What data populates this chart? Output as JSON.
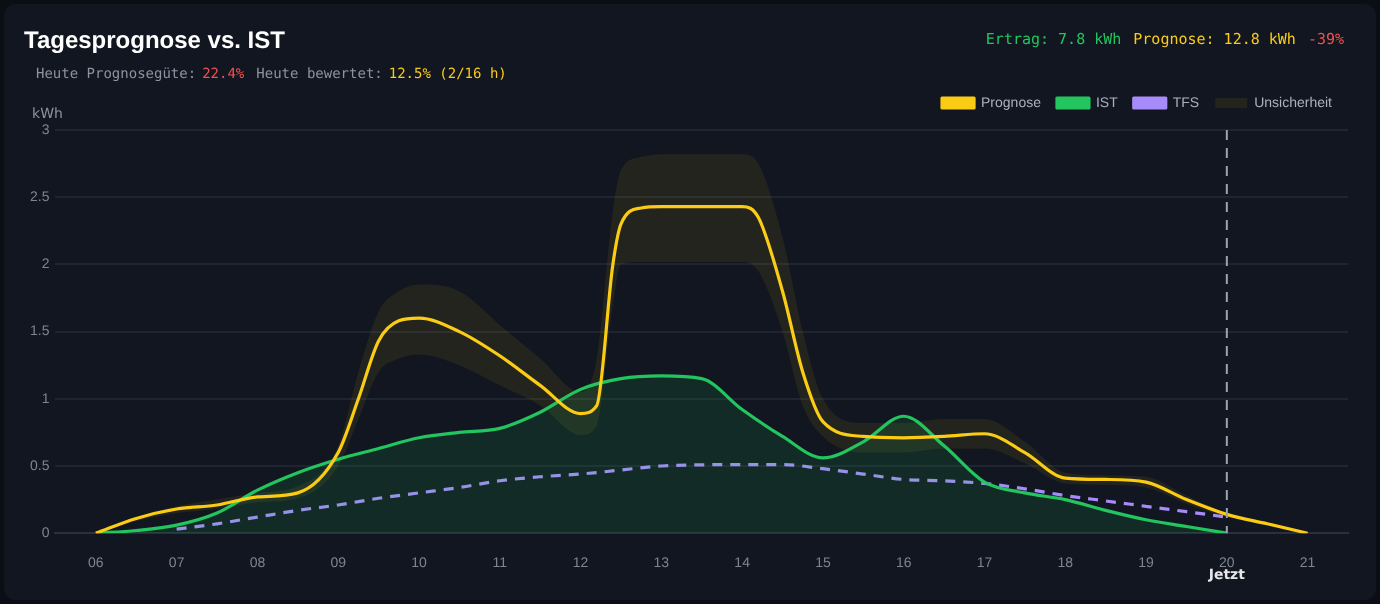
{
  "chart_data": {
    "type": "line",
    "title": "Tagesprognose vs. IST",
    "ylabel": "kWh",
    "annotations": [
      "Heute Prognosegüte:",
      "22.4%",
      "Heute bewertet:",
      "12.5% (2/16 h)",
      "Ertrag: 7.8 kWh",
      "Prognose: 12.8 kWh",
      "-39%",
      "Unsicherheit"
    ],
    "xlim": [
      5.5,
      21.5
    ],
    "xticks": [
      {
        "value": 6,
        "label": "06"
      },
      {
        "value": 7,
        "label": "07"
      },
      {
        "value": 8,
        "label": "08"
      },
      {
        "value": 9,
        "label": "09"
      },
      10,
      11,
      12,
      13,
      14,
      15,
      16,
      17,
      18,
      19,
      20,
      21
    ],
    "ylim": [
      0,
      3
    ],
    "yticks": [
      0,
      0.5,
      1,
      1.5,
      2,
      2.5,
      3
    ],
    "grid": "y",
    "legend": "top right",
    "marker": "none",
    "series": [
      {
        "name": "Prognose",
        "color": "#facc15",
        "x": [
          6,
          6.5,
          7,
          7.5,
          8,
          8.5,
          9,
          9.25,
          9.5,
          9.75,
          10,
          10.5,
          11,
          11.5,
          12,
          12.2,
          12.4,
          12.5,
          12.75,
          13,
          14,
          14.2,
          14.5,
          14.75,
          15,
          15.5,
          16,
          16.5,
          17,
          17.5,
          18,
          18.5,
          19,
          19.5,
          20,
          20.5,
          21
        ],
        "values": [
          0,
          0.11,
          0.18,
          0.21,
          0.27,
          0.3,
          0.6,
          1.0,
          1.43,
          1.58,
          1.6,
          1.5,
          1.32,
          1.1,
          0.89,
          0.95,
          2.0,
          2.3,
          2.42,
          2.43,
          2.43,
          2.35,
          1.8,
          1.2,
          0.83,
          0.72,
          0.71,
          0.72,
          0.74,
          0.6,
          0.41,
          0.4,
          0.38,
          0.25,
          0.14,
          0.07,
          0
        ],
        "lower": [
          0,
          0.09,
          0.15,
          0.18,
          0.23,
          0.26,
          0.5,
          0.85,
          1.2,
          1.3,
          1.33,
          1.25,
          1.1,
          0.95,
          0.73,
          0.8,
          1.7,
          2.0,
          2.02,
          2.02,
          2.02,
          1.95,
          1.5,
          0.95,
          0.72,
          0.6,
          0.6,
          0.63,
          0.63,
          0.52,
          0.37,
          0.36,
          0.34,
          0.22,
          0.12,
          0.06,
          0
        ],
        "upper": [
          0,
          0.12,
          0.2,
          0.25,
          0.3,
          0.35,
          0.65,
          1.2,
          1.65,
          1.8,
          1.85,
          1.8,
          1.55,
          1.3,
          1.05,
          1.3,
          2.4,
          2.7,
          2.8,
          2.82,
          2.82,
          2.75,
          2.2,
          1.5,
          1.0,
          0.82,
          0.82,
          0.85,
          0.85,
          0.68,
          0.45,
          0.43,
          0.42,
          0.28,
          0.15,
          0.08,
          0
        ]
      },
      {
        "name": "IST",
        "type": "area",
        "color": "#22c55e",
        "x": [
          6,
          6.5,
          7,
          7.5,
          8,
          8.5,
          9,
          9.5,
          10,
          10.5,
          11,
          11.5,
          12,
          12.5,
          13,
          13.5,
          14,
          14.5,
          15,
          15.5,
          16,
          16.5,
          17,
          17.5,
          18,
          18.5,
          19,
          19.5,
          20
        ],
        "values": [
          0,
          0.02,
          0.06,
          0.15,
          0.32,
          0.45,
          0.55,
          0.63,
          0.71,
          0.75,
          0.78,
          0.9,
          1.07,
          1.15,
          1.17,
          1.15,
          0.92,
          0.72,
          0.56,
          0.68,
          0.87,
          0.65,
          0.38,
          0.3,
          0.25,
          0.17,
          0.1,
          0.05,
          0
        ]
      },
      {
        "name": "TFS",
        "color": "#a78bfa",
        "line_style": "dashed",
        "x": [
          7,
          7.5,
          8,
          8.5,
          9,
          9.5,
          10,
          10.5,
          11,
          11.5,
          12,
          12.5,
          13,
          14,
          14.5,
          15,
          15.5,
          16,
          16.5,
          17,
          17.5,
          18,
          18.5,
          19,
          19.5,
          20
        ],
        "values": [
          0.03,
          0.07,
          0.12,
          0.17,
          0.21,
          0.26,
          0.3,
          0.34,
          0.39,
          0.42,
          0.44,
          0.47,
          0.5,
          0.51,
          0.51,
          0.48,
          0.44,
          0.4,
          0.39,
          0.37,
          0.33,
          0.28,
          0.24,
          0.2,
          0.16,
          0.12
        ]
      }
    ],
    "ref_lines": [
      {
        "axis": "x",
        "value": 20,
        "label": "Jetzt",
        "color": "#9ca3af",
        "line_style": "dashed"
      }
    ]
  }
}
